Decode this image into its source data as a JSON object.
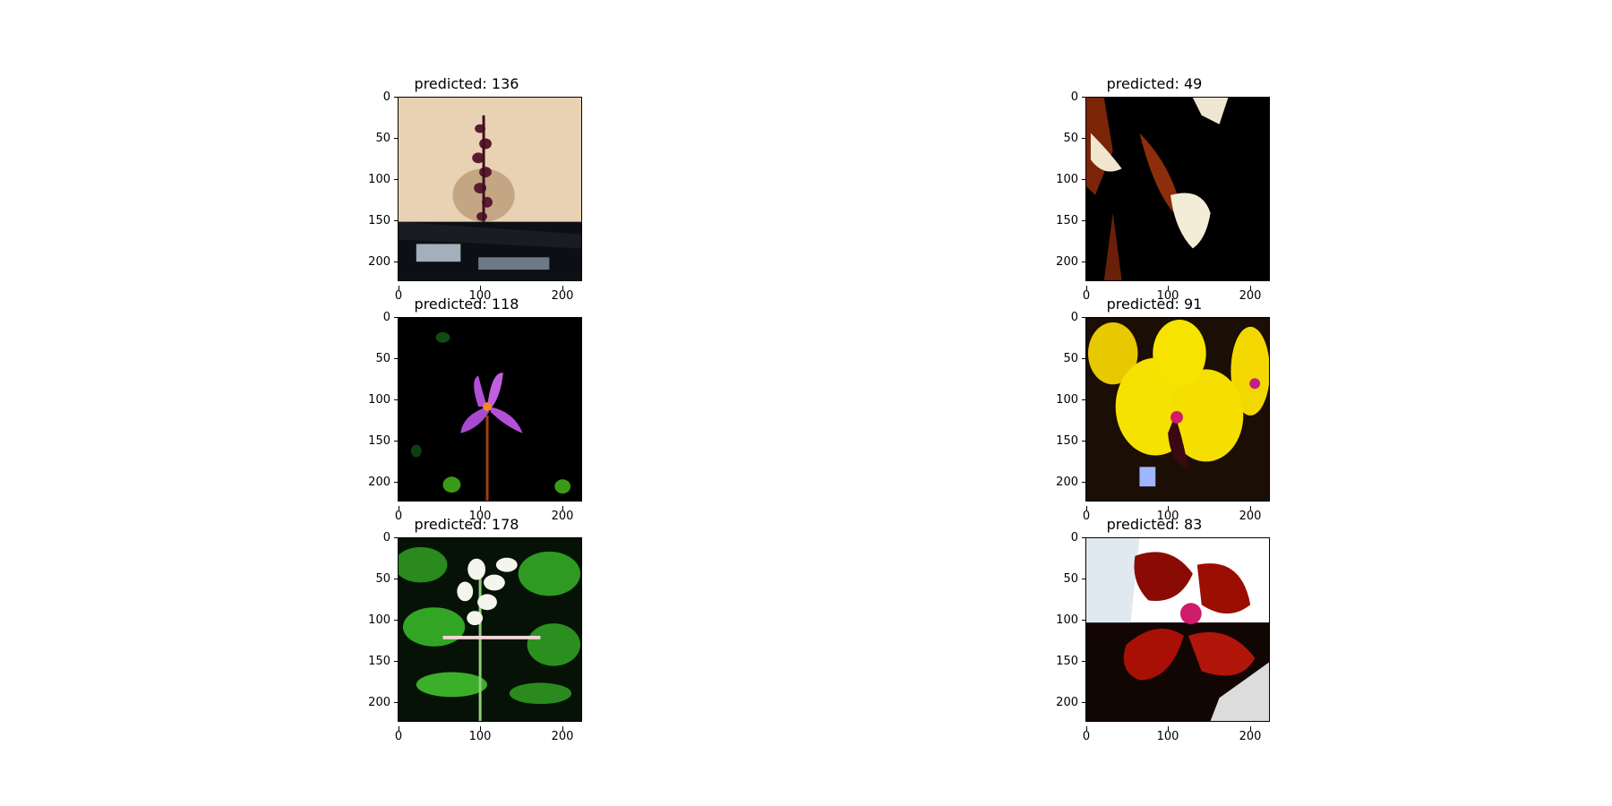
{
  "figure": {
    "panels": [
      {
        "title": "predicted: 136",
        "image": "flower-spike-sand-photo"
      },
      {
        "title": "predicted: 49",
        "image": "flower-white-dark-photo"
      },
      {
        "title": "predicted: 118",
        "image": "flower-purple-iris-photo"
      },
      {
        "title": "predicted: 91",
        "image": "flower-yellow-orchid-photo"
      },
      {
        "title": "predicted: 178",
        "image": "flower-white-green-leaves-photo"
      },
      {
        "title": "predicted: 83",
        "image": "flower-red-orchid-photo"
      }
    ],
    "y_ticks": [
      "0",
      "50",
      "100",
      "150",
      "200"
    ],
    "x_ticks": [
      "0",
      "100",
      "200"
    ]
  }
}
